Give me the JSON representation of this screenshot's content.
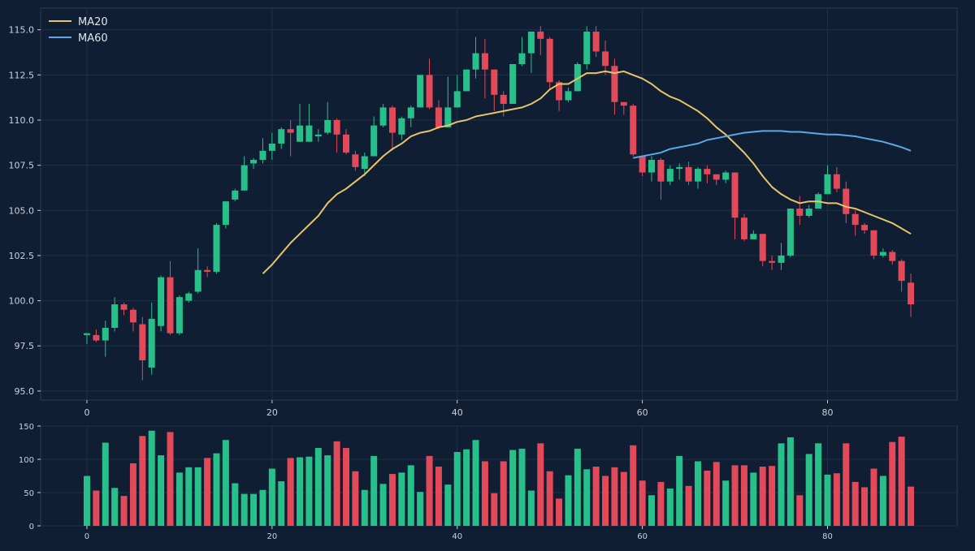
{
  "colors": {
    "background": "#0f1e33",
    "grid": "#1f3149",
    "axis": "#2a3d57",
    "tick_text": "#c9d1dc",
    "up": "#27c08a",
    "down": "#e24a5a",
    "ma20": "#e8c46a",
    "ma60": "#5aa8e6"
  },
  "legend": {
    "position": "top-left",
    "items": [
      {
        "label": "MA20",
        "color": "#e8c46a"
      },
      {
        "label": "MA60",
        "color": "#5aa8e6"
      }
    ]
  },
  "chart_data": {
    "type": "candlestick",
    "grid": true,
    "x_range": [
      -5,
      94
    ],
    "price_range": [
      94.5,
      116.2
    ],
    "price_ticks": [
      "95.0",
      "97.5",
      "100.0",
      "102.5",
      "105.0",
      "107.5",
      "110.0",
      "112.5",
      "115.0"
    ],
    "volume_range": [
      0,
      150
    ],
    "volume_ticks": [
      "0",
      "50",
      "100",
      "150"
    ],
    "x_ticks": [
      "0",
      "20",
      "40",
      "60",
      "80"
    ],
    "candles": [
      [
        98.1,
        98.2,
        98.2,
        97.6
      ],
      [
        98.1,
        97.8,
        98.4,
        97.7
      ],
      [
        97.8,
        98.5,
        98.9,
        96.9
      ],
      [
        98.5,
        99.8,
        100.2,
        98.3
      ],
      [
        99.8,
        99.5,
        99.9,
        99.2
      ],
      [
        99.5,
        98.8,
        99.6,
        98.3
      ],
      [
        98.7,
        96.7,
        99.1,
        95.6
      ],
      [
        96.3,
        99.0,
        99.9,
        95.9
      ],
      [
        98.6,
        101.3,
        101.4,
        98.3
      ],
      [
        101.3,
        98.2,
        102.2,
        98.1
      ],
      [
        98.2,
        100.2,
        100.3,
        98.1
      ],
      [
        100.0,
        100.4,
        100.5,
        99.9
      ],
      [
        100.5,
        101.7,
        102.9,
        100.4
      ],
      [
        101.7,
        101.6,
        101.9,
        101.3
      ],
      [
        101.6,
        104.2,
        104.3,
        101.5
      ],
      [
        104.2,
        105.5,
        105.5,
        104.0
      ],
      [
        105.6,
        106.1,
        106.2,
        105.5
      ],
      [
        106.1,
        107.5,
        108.0,
        106.1
      ],
      [
        107.6,
        107.8,
        107.9,
        107.3
      ],
      [
        107.8,
        108.3,
        109.0,
        107.6
      ],
      [
        108.3,
        108.7,
        109.3,
        107.8
      ],
      [
        108.7,
        109.5,
        109.6,
        108.4
      ],
      [
        109.5,
        109.3,
        110.0,
        108.0
      ],
      [
        108.8,
        109.7,
        110.9,
        108.8
      ],
      [
        108.8,
        109.7,
        110.9,
        108.8
      ],
      [
        109.1,
        109.2,
        109.5,
        108.8
      ],
      [
        109.3,
        110.0,
        111.0,
        109.2
      ],
      [
        110.0,
        109.2,
        110.1,
        108.2
      ],
      [
        109.2,
        108.2,
        109.5,
        108.1
      ],
      [
        108.1,
        107.4,
        108.3,
        107.2
      ],
      [
        107.3,
        108.0,
        108.2,
        106.9
      ],
      [
        108.0,
        109.7,
        110.2,
        108.0
      ],
      [
        109.7,
        110.7,
        110.9,
        109.6
      ],
      [
        110.7,
        109.3,
        110.8,
        108.3
      ],
      [
        109.2,
        110.1,
        110.2,
        108.9
      ],
      [
        110.1,
        110.7,
        110.8,
        109.6
      ],
      [
        110.7,
        112.5,
        112.5,
        110.7
      ],
      [
        112.5,
        110.7,
        113.4,
        110.6
      ],
      [
        110.7,
        109.6,
        111.1,
        109.5
      ],
      [
        109.6,
        110.7,
        112.4,
        109.6
      ],
      [
        110.7,
        111.6,
        112.5,
        110.7
      ],
      [
        111.6,
        112.8,
        112.8,
        111.6
      ],
      [
        112.8,
        113.7,
        114.6,
        112.3
      ],
      [
        113.7,
        112.8,
        114.5,
        111.2
      ],
      [
        112.8,
        111.4,
        112.8,
        110.5
      ],
      [
        111.4,
        110.9,
        111.6,
        110.2
      ],
      [
        110.9,
        113.1,
        113.1,
        110.9
      ],
      [
        113.1,
        113.7,
        114.6,
        113.0
      ],
      [
        113.7,
        114.9,
        114.9,
        112.6
      ],
      [
        114.9,
        114.5,
        115.2,
        113.6
      ],
      [
        114.5,
        112.1,
        114.6,
        111.7
      ],
      [
        112.1,
        111.1,
        112.2,
        110.5
      ],
      [
        111.1,
        111.6,
        111.8,
        111.0
      ],
      [
        111.6,
        113.1,
        113.2,
        111.6
      ],
      [
        113.1,
        114.9,
        115.2,
        112.8
      ],
      [
        114.9,
        113.8,
        115.2,
        113.5
      ],
      [
        113.8,
        113.0,
        114.4,
        112.5
      ],
      [
        113.0,
        111.0,
        113.4,
        110.3
      ],
      [
        111.0,
        110.8,
        110.9,
        110.3
      ],
      [
        110.8,
        108.1,
        110.9,
        108.0
      ],
      [
        108.0,
        107.1,
        108.0,
        106.9
      ],
      [
        107.1,
        107.8,
        108.0,
        106.6
      ],
      [
        107.8,
        106.6,
        107.9,
        105.6
      ],
      [
        106.6,
        107.3,
        107.5,
        106.4
      ],
      [
        107.3,
        107.4,
        107.6,
        106.7
      ],
      [
        107.4,
        106.6,
        107.7,
        106.4
      ],
      [
        106.6,
        107.3,
        107.4,
        106.2
      ],
      [
        107.3,
        107.0,
        107.5,
        106.5
      ],
      [
        107.0,
        106.7,
        107.0,
        106.4
      ],
      [
        106.7,
        107.1,
        107.2,
        106.5
      ],
      [
        107.1,
        104.6,
        107.1,
        103.4
      ],
      [
        104.6,
        103.4,
        104.8,
        103.3
      ],
      [
        103.4,
        103.7,
        103.9,
        103.5
      ],
      [
        103.7,
        102.2,
        103.7,
        101.9
      ],
      [
        102.2,
        102.1,
        102.5,
        101.7
      ],
      [
        102.1,
        102.5,
        103.2,
        101.7
      ],
      [
        102.5,
        105.1,
        105.1,
        102.4
      ],
      [
        105.1,
        104.7,
        105.8,
        104.2
      ],
      [
        104.7,
        105.1,
        105.3,
        104.6
      ],
      [
        105.1,
        105.9,
        106.0,
        105.2
      ],
      [
        105.9,
        107.0,
        107.5,
        105.9
      ],
      [
        107.0,
        106.2,
        107.4,
        106.0
      ],
      [
        106.2,
        104.8,
        106.6,
        104.3
      ],
      [
        104.8,
        104.2,
        105.0,
        103.6
      ],
      [
        104.2,
        103.9,
        104.3,
        103.7
      ],
      [
        103.9,
        102.5,
        103.9,
        102.3
      ],
      [
        102.5,
        102.7,
        102.9,
        102.4
      ],
      [
        102.7,
        102.2,
        102.8,
        102.0
      ],
      [
        102.2,
        101.1,
        102.3,
        100.5
      ],
      [
        101.0,
        99.8,
        101.5,
        99.1
      ]
    ],
    "volumes": [
      75,
      53,
      125,
      57,
      45,
      94,
      135,
      143,
      106,
      141,
      80,
      88,
      88,
      102,
      109,
      129,
      64,
      48,
      48,
      54,
      86,
      67,
      102,
      103,
      104,
      117,
      106,
      127,
      117,
      82,
      54,
      105,
      63,
      78,
      80,
      91,
      51,
      105,
      89,
      62,
      111,
      115,
      129,
      97,
      49,
      97,
      114,
      116,
      53,
      124,
      82,
      41,
      76,
      116,
      85,
      89,
      75,
      88,
      81,
      121,
      68,
      46,
      66,
      56,
      105,
      60,
      97,
      83,
      96,
      68,
      91,
      91,
      80,
      89,
      90,
      124,
      133,
      46,
      108,
      124,
      77,
      79,
      124,
      66,
      58,
      86,
      75,
      126,
      134,
      59
    ],
    "ma20": {
      "x": [
        19,
        20,
        21,
        22,
        23,
        24,
        25,
        26,
        27,
        28,
        29,
        30,
        31,
        32,
        33,
        34,
        35,
        36,
        37,
        38,
        39,
        40,
        41,
        42,
        43,
        44,
        45,
        46,
        47,
        48,
        49,
        50,
        51,
        52,
        53,
        54,
        55,
        56,
        57,
        58,
        59,
        60,
        61,
        62,
        63,
        64,
        65,
        66,
        67,
        68,
        69,
        70,
        71,
        72,
        73,
        74,
        75,
        76,
        77,
        78,
        79,
        80,
        81,
        82,
        83,
        84,
        85,
        86,
        87,
        88,
        89
      ],
      "y": [
        101.5,
        102.0,
        102.6,
        103.2,
        103.7,
        104.2,
        104.7,
        105.4,
        105.9,
        106.2,
        106.6,
        107.0,
        107.5,
        108.0,
        108.4,
        108.7,
        109.1,
        109.3,
        109.4,
        109.6,
        109.7,
        109.9,
        110.0,
        110.2,
        110.3,
        110.4,
        110.5,
        110.6,
        110.7,
        110.9,
        111.2,
        111.7,
        112.0,
        112.0,
        112.3,
        112.6,
        112.6,
        112.7,
        112.6,
        112.7,
        112.5,
        112.3,
        112.0,
        111.6,
        111.3,
        111.1,
        110.8,
        110.5,
        110.1,
        109.6,
        109.2,
        108.7,
        108.2,
        107.6,
        106.9,
        106.3,
        105.9,
        105.6,
        105.4,
        105.5,
        105.5,
        105.4,
        105.4,
        105.2,
        105.1,
        104.9,
        104.7,
        104.5,
        104.3,
        104.0,
        103.7
      ]
    },
    "ma60": {
      "x": [
        59,
        60,
        61,
        62,
        63,
        64,
        65,
        66,
        67,
        68,
        69,
        70,
        71,
        72,
        73,
        74,
        75,
        76,
        77,
        78,
        79,
        80,
        81,
        82,
        83,
        84,
        85,
        86,
        87,
        88,
        89
      ],
      "y": [
        107.9,
        108.0,
        108.1,
        108.2,
        108.4,
        108.5,
        108.6,
        108.7,
        108.9,
        109.0,
        109.1,
        109.2,
        109.3,
        109.35,
        109.4,
        109.4,
        109.4,
        109.35,
        109.35,
        109.3,
        109.25,
        109.2,
        109.2,
        109.15,
        109.1,
        109.0,
        108.9,
        108.8,
        108.65,
        108.5,
        108.3
      ]
    }
  }
}
